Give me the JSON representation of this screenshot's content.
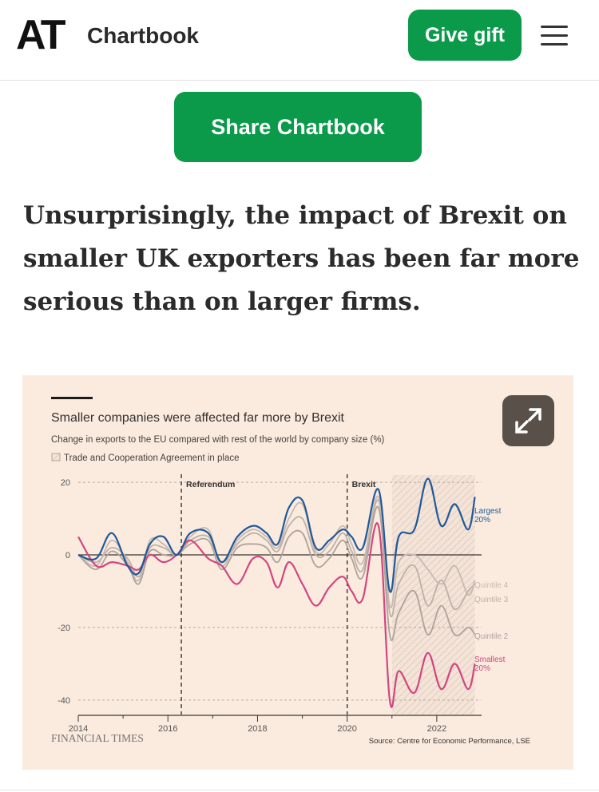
{
  "header": {
    "logo": "AT",
    "brand": "Chartbook",
    "gift_label": "Give gift",
    "menu_icon": "hamburger-menu-icon"
  },
  "share_label": "Share Chartbook",
  "headline": "Unsurprisingly, the impact of Brexit on smaller UK exporters has been far more serious than on larger firms.",
  "expand_icon": "expand-arrows-icon",
  "chart_data": {
    "type": "line",
    "title": "Smaller companies were affected far more by Brexit",
    "subtitle": "Change in exports to the EU compared with rest of the world by company size (%)",
    "shaded_legend": "Trade and Cooperation Agreement in place",
    "shaded_range": [
      2021.0,
      2022.85
    ],
    "xlim": [
      2014,
      2023
    ],
    "ylim": [
      -44,
      22
    ],
    "x_ticks": [
      2014,
      2016,
      2018,
      2020,
      2022
    ],
    "y_ticks": [
      20,
      0,
      -20,
      -40
    ],
    "annotations": [
      {
        "x": 2016.3,
        "label": "Referendum"
      },
      {
        "x": 2020.0,
        "label": "Brexit"
      }
    ],
    "source": "Source: Centre for Economic Performance, LSE",
    "credit": "FINANCIAL TIMES",
    "series": [
      {
        "name": "Largest 20%",
        "color": "#1f5a99",
        "x": [
          2014.0,
          2014.4,
          2014.75,
          2015.1,
          2015.35,
          2015.6,
          2015.9,
          2016.2,
          2016.5,
          2016.9,
          2017.2,
          2017.55,
          2017.9,
          2018.2,
          2018.45,
          2018.7,
          2019.0,
          2019.3,
          2019.6,
          2019.9,
          2020.1,
          2020.35,
          2020.7,
          2020.95,
          2021.15,
          2021.5,
          2021.8,
          2022.1,
          2022.4,
          2022.7,
          2022.85
        ],
        "values": [
          0,
          -1,
          6,
          -3,
          -5,
          3,
          5,
          0,
          6,
          6,
          -2,
          5,
          8,
          6,
          3,
          13,
          15,
          2,
          4,
          7,
          5,
          2,
          18,
          -10,
          5,
          7,
          21,
          8,
          14,
          7,
          16
        ]
      },
      {
        "name": "Quintile 4",
        "color": "#c7b9b1",
        "x": [
          2014.0,
          2014.4,
          2014.75,
          2015.1,
          2015.35,
          2015.6,
          2015.9,
          2016.2,
          2016.5,
          2016.9,
          2017.2,
          2017.55,
          2017.9,
          2018.2,
          2018.45,
          2018.7,
          2019.0,
          2019.3,
          2019.6,
          2019.9,
          2020.1,
          2020.35,
          2020.7,
          2020.95,
          2021.15,
          2021.5,
          2021.8,
          2022.1,
          2022.4,
          2022.7,
          2022.85
        ],
        "values": [
          0,
          -3,
          4,
          -2,
          -7,
          4,
          3,
          0,
          5,
          7,
          -3,
          4,
          7,
          5,
          2,
          10,
          14,
          1,
          3,
          8,
          3,
          -2,
          16,
          -14,
          -2,
          0,
          -4,
          -8,
          -3,
          -11,
          -7
        ]
      },
      {
        "name": "Quintile 3",
        "color": "#bdb0a8",
        "x": [
          2014.0,
          2014.4,
          2014.75,
          2015.1,
          2015.35,
          2015.6,
          2015.9,
          2016.2,
          2016.5,
          2016.9,
          2017.2,
          2017.55,
          2017.9,
          2018.2,
          2018.45,
          2018.7,
          2019.0,
          2019.3,
          2019.6,
          2019.9,
          2020.1,
          2020.35,
          2020.7,
          2020.95,
          2021.15,
          2021.5,
          2021.8,
          2022.1,
          2022.4,
          2022.7,
          2022.85
        ],
        "values": [
          0,
          -2,
          2,
          -1,
          -6,
          2,
          2,
          0,
          4,
          5,
          -2,
          3,
          6,
          4,
          1,
          8,
          10,
          0,
          1,
          6,
          1,
          -4,
          15,
          -16,
          -8,
          -3,
          -14,
          -7,
          -15,
          -10,
          -8
        ]
      },
      {
        "name": "Quintile 2",
        "color": "#aea29b",
        "x": [
          2014.0,
          2014.4,
          2014.75,
          2015.1,
          2015.35,
          2015.6,
          2015.9,
          2016.2,
          2016.5,
          2016.9,
          2017.2,
          2017.55,
          2017.9,
          2018.2,
          2018.45,
          2018.7,
          2019.0,
          2019.3,
          2019.6,
          2019.9,
          2020.1,
          2020.35,
          2020.7,
          2020.95,
          2021.15,
          2021.5,
          2021.8,
          2022.1,
          2022.4,
          2022.7,
          2022.85
        ],
        "values": [
          0,
          -4,
          1,
          -3,
          -8,
          1,
          0,
          0,
          3,
          4,
          -4,
          2,
          3,
          2,
          -2,
          5,
          6,
          -3,
          -1,
          4,
          -1,
          -6,
          13,
          -22,
          -16,
          -10,
          -22,
          -14,
          -22,
          -20,
          -22
        ]
      },
      {
        "name": "Smallest 20%",
        "color": "#d1467f",
        "x": [
          2014.0,
          2014.4,
          2014.75,
          2015.1,
          2015.35,
          2015.6,
          2015.9,
          2016.2,
          2016.5,
          2016.9,
          2017.2,
          2017.55,
          2017.9,
          2018.2,
          2018.45,
          2018.7,
          2019.0,
          2019.3,
          2019.6,
          2019.9,
          2020.1,
          2020.35,
          2020.7,
          2020.95,
          2021.15,
          2021.5,
          2021.8,
          2022.1,
          2022.4,
          2022.7,
          2022.85
        ],
        "values": [
          5,
          -3,
          -2,
          -3,
          -4,
          0,
          -2,
          0,
          4,
          -1,
          -3,
          -8,
          -1,
          -2,
          -9,
          -2,
          -8,
          -14,
          -9,
          -6,
          -10,
          -12,
          8,
          -40,
          -32,
          -38,
          -27,
          -37,
          -30,
          -37,
          -30
        ]
      }
    ]
  }
}
